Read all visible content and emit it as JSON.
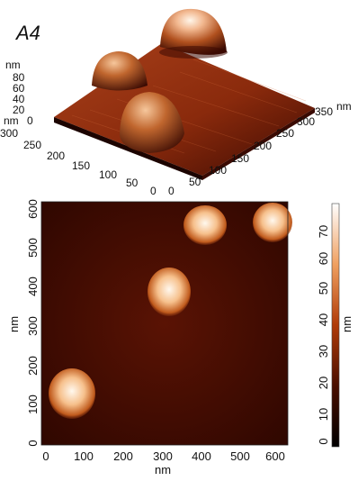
{
  "panel_label": "A4",
  "top_3d": {
    "z_unit": "nm",
    "z_ticks": [
      "80",
      "60",
      "40",
      "20",
      "0"
    ],
    "y_unit": "nm",
    "y_ticks": [
      "300",
      "250",
      "200",
      "150",
      "100",
      "50",
      "0"
    ],
    "x_unit": "nm",
    "x_ticks": [
      "0",
      "50",
      "100",
      "150",
      "200",
      "250",
      "300",
      "350"
    ]
  },
  "bottom_map": {
    "x_label": "nm",
    "y_label": "nm",
    "x_ticks": [
      "0",
      "100",
      "200",
      "300",
      "400",
      "500",
      "600"
    ],
    "y_ticks": [
      "0",
      "100",
      "200",
      "300",
      "400",
      "500",
      "600"
    ],
    "colorbar_label": "nm",
    "colorbar_ticks": [
      "0",
      "10",
      "20",
      "30",
      "40",
      "50",
      "60",
      "70"
    ]
  },
  "colors": {
    "background_dark": "#3a0800",
    "surface_orange": "#c24a1a",
    "highlight": "#fff4e6"
  }
}
